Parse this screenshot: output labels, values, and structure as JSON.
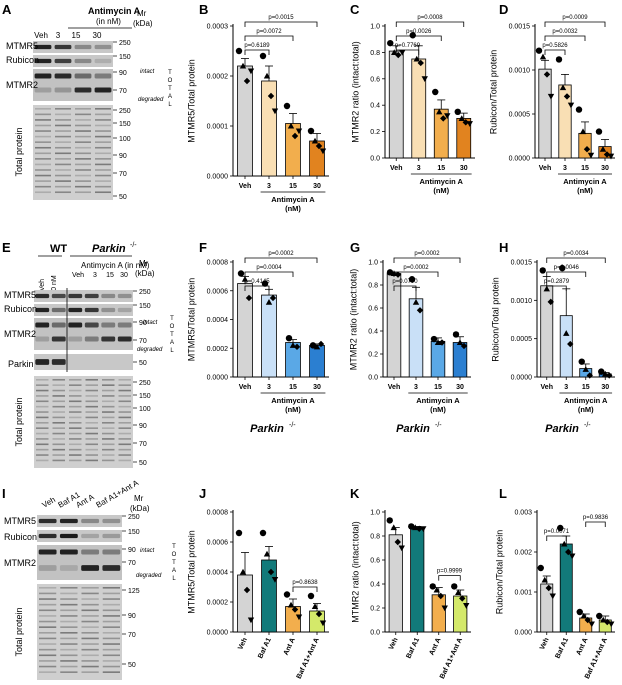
{
  "panel_letters": [
    "A",
    "B",
    "C",
    "D",
    "E",
    "F",
    "G",
    "H",
    "I",
    "J",
    "K",
    "L"
  ],
  "blots": {
    "A": {
      "header": [
        "Antimycin A",
        "(in nM)"
      ],
      "lanes": [
        "Veh",
        "3",
        "15",
        "30"
      ],
      "mr_title": [
        "Mr",
        "(kDa)"
      ],
      "rows": [
        "MTMR5",
        "Rubicon",
        "MTMR2"
      ],
      "total_label": "Total protein",
      "markers_top": [
        "250",
        "150",
        "90",
        "70"
      ],
      "markers_total": [
        "250",
        "150",
        "100",
        "90",
        "70",
        "50"
      ],
      "intact": "intact",
      "degraded": "degraded",
      "total_vertical": [
        "T",
        "O",
        "T",
        "A",
        "L"
      ]
    },
    "E": {
      "wt": "WT",
      "parkin": "Parkin",
      "parkin_sup": "-/-",
      "header": "Antimycin A (in nM)",
      "lanes": [
        "Veh",
        "30 nM",
        "Veh",
        "3",
        "15",
        "30"
      ],
      "mr_title": [
        "Mr",
        "(kDa)"
      ],
      "rows": [
        "MTMR5",
        "Rubicon",
        "MTMR2",
        "Parkin"
      ],
      "total_label": "Total protein",
      "markers_top": [
        "250",
        "150",
        "90",
        "70",
        "50"
      ],
      "markers_total": [
        "250",
        "150",
        "100",
        "90",
        "70",
        "50"
      ],
      "intact": "intact",
      "degraded": "degraded",
      "total_vertical": [
        "T",
        "O",
        "T",
        "A",
        "L"
      ]
    },
    "I": {
      "lanes": [
        "Veh",
        "Baf A1",
        "Ant A",
        "Baf A1+Ant A"
      ],
      "mr_title": [
        "Mr",
        "(kDa)"
      ],
      "rows": [
        "MTMR5",
        "Rubicon",
        "MTMR2"
      ],
      "total_label": "Total protein",
      "markers_top": [
        "250",
        "150",
        "90",
        "70"
      ],
      "markers_total": [
        "125",
        "90",
        "70",
        "50"
      ],
      "intact": "intact",
      "degraded": "degraded",
      "total_vertical": [
        "T",
        "O",
        "T",
        "A",
        "L"
      ]
    }
  },
  "chart_data": [
    {
      "panel": "B",
      "type": "bar",
      "categories": [
        "Veh",
        "3",
        "15",
        "30"
      ],
      "values": [
        0.00022,
        0.00019,
        0.000105,
        7e-05
      ],
      "errors": [
        1.5e-05,
        3e-05,
        2e-05,
        1.5e-05
      ],
      "points": [
        [
          0.00025,
          0.00022,
          0.00019,
          0.00021
        ],
        [
          0.00024,
          0.0002,
          0.00016,
          0.00013
        ],
        [
          0.00014,
          0.0001,
          8e-05,
          9e-05
        ],
        [
          9e-05,
          7e-05,
          6e-05,
          5e-05
        ]
      ],
      "colors": [
        "#d4d4d4",
        "#f9dfb4",
        "#f2ae4d",
        "#e1831f"
      ],
      "ylabel": "MTMR5/Total protein",
      "yticks": [
        "0.0000",
        "0.0001",
        "0.0002",
        "0.0003"
      ],
      "ylim": [
        0,
        0.0003
      ],
      "group_label": [
        "Antimycin A",
        "(nM)"
      ],
      "xticks_rotated": false,
      "brackets": [
        {
          "from": 0,
          "to": 1,
          "text": "p=0.6189"
        },
        {
          "from": 0,
          "to": 2,
          "text": "p=0.0072"
        },
        {
          "from": 0,
          "to": 3,
          "text": "p=0.0015"
        }
      ],
      "genotype": ""
    },
    {
      "panel": "C",
      "type": "bar",
      "categories": [
        "Veh",
        "3",
        "15",
        "30"
      ],
      "values": [
        0.81,
        0.75,
        0.37,
        0.3
      ],
      "errors": [
        0.04,
        0.1,
        0.07,
        0.04
      ],
      "points": [
        [
          0.87,
          0.8,
          0.78,
          0.8
        ],
        [
          0.93,
          0.75,
          0.72,
          0.6
        ],
        [
          0.5,
          0.35,
          0.3,
          0.32
        ],
        [
          0.35,
          0.3,
          0.27,
          0.26
        ]
      ],
      "colors": [
        "#d4d4d4",
        "#f9dfb4",
        "#f2ae4d",
        "#e1831f"
      ],
      "ylabel": "MTMR2 ratio (intact:total)",
      "yticks": [
        "0.0",
        "0.2",
        "0.4",
        "0.6",
        "0.8",
        "1.0"
      ],
      "ylim": [
        0,
        1.0
      ],
      "group_label": [
        "Antimycin A",
        "(nM)"
      ],
      "xticks_rotated": false,
      "brackets": [
        {
          "from": 0,
          "to": 1,
          "text": "p=0.7769"
        },
        {
          "from": 0,
          "to": 2,
          "text": "p=0.0026"
        },
        {
          "from": 0,
          "to": 3,
          "text": "p=0.0008"
        }
      ],
      "genotype": ""
    },
    {
      "panel": "D",
      "type": "bar",
      "categories": [
        "Veh",
        "3",
        "15",
        "30"
      ],
      "values": [
        0.00101,
        0.00083,
        0.00028,
        0.00013
      ],
      "errors": [
        0.0001,
        0.00012,
        0.00013,
        8e-05
      ],
      "points": [
        [
          0.00122,
          0.00115,
          0.00095,
          0.0007
        ],
        [
          0.00112,
          0.0008,
          0.0007,
          0.0006
        ],
        [
          0.00055,
          0.0003,
          0.0001,
          3e-05
        ],
        [
          0.0003,
          0.0001,
          4e-05,
          2e-05
        ]
      ],
      "colors": [
        "#d4d4d4",
        "#f9dfb4",
        "#f2ae4d",
        "#e1831f"
      ],
      "ylabel": "Rubicon/Total protein",
      "yticks": [
        "0.0000",
        "0.0005",
        "0.0010",
        "0.0015"
      ],
      "ylim": [
        0,
        0.0015
      ],
      "group_label": [
        "Antimycin A",
        "(nM)"
      ],
      "xticks_rotated": false,
      "brackets": [
        {
          "from": 0,
          "to": 1,
          "text": "p=0.5826"
        },
        {
          "from": 0,
          "to": 2,
          "text": "p=0.0032"
        },
        {
          "from": 0,
          "to": 3,
          "text": "p=0.0009"
        }
      ],
      "genotype": ""
    },
    {
      "panel": "F",
      "type": "bar",
      "categories": [
        "Veh",
        "3",
        "15",
        "30"
      ],
      "values": [
        0.00065,
        0.00057,
        0.00024,
        0.00022
      ],
      "errors": [
        5e-05,
        4e-05,
        2e-05,
        1e-05
      ],
      "points": [
        [
          0.00072,
          0.00068,
          0.00055
        ],
        [
          0.00065,
          0.00052,
          0.00055
        ],
        [
          0.00027,
          0.00022,
          0.00021
        ],
        [
          0.00022,
          0.00021,
          0.00023
        ]
      ],
      "colors": [
        "#d4d4d4",
        "#c9e0f7",
        "#5aa8e6",
        "#2b7fd1"
      ],
      "ylabel": "MTMR5/Total protein",
      "yticks": [
        "0.0000",
        "0.0002",
        "0.0004",
        "0.0006",
        "0.0008"
      ],
      "ylim": [
        0,
        0.0008
      ],
      "group_label": [
        "Antimycin A",
        "(nM)"
      ],
      "xticks_rotated": false,
      "brackets": [
        {
          "from": 0,
          "to": 1,
          "text": "p=0.4145"
        },
        {
          "from": 0,
          "to": 2,
          "text": "p=0.0004"
        },
        {
          "from": 0,
          "to": 3,
          "text": "p=0.0002"
        }
      ],
      "genotype": "Parkin"
    },
    {
      "panel": "G",
      "type": "bar",
      "categories": [
        "Veh",
        "3",
        "15",
        "30"
      ],
      "values": [
        0.9,
        0.68,
        0.31,
        0.3
      ],
      "errors": [
        0.01,
        0.1,
        0.03,
        0.05
      ],
      "points": [
        [
          0.91,
          0.9,
          0.89
        ],
        [
          0.85,
          0.65,
          0.58
        ],
        [
          0.33,
          0.3,
          0.3
        ],
        [
          0.37,
          0.3,
          0.27
        ]
      ],
      "colors": [
        "#d4d4d4",
        "#c9e0f7",
        "#5aa8e6",
        "#2b7fd1"
      ],
      "ylabel": "MTMR2 ratio (intact:total)",
      "yticks": [
        "0.0",
        "0.2",
        "0.4",
        "0.6",
        "0.8",
        "1.0"
      ],
      "ylim": [
        0,
        1.0
      ],
      "group_label": [
        "Antimycin A",
        "(nM)"
      ],
      "xticks_rotated": false,
      "brackets": [
        {
          "from": 0,
          "to": 1,
          "text": "p=0.0790"
        },
        {
          "from": 0,
          "to": 2,
          "text": "p=0.0002"
        },
        {
          "from": 0,
          "to": 3,
          "text": "p=0.0002"
        }
      ],
      "genotype": "Parkin"
    },
    {
      "panel": "H",
      "type": "bar",
      "categories": [
        "Veh",
        "3",
        "15",
        "30"
      ],
      "values": [
        0.00119,
        0.0008,
        0.00011,
        4e-05
      ],
      "errors": [
        0.00012,
        0.00035,
        6e-05,
        2e-05
      ],
      "points": [
        [
          0.00139,
          0.00115,
          0.00098
        ],
        [
          0.00142,
          0.00057,
          0.00043
        ],
        [
          0.0002,
          0.0001,
          2e-05
        ],
        [
          7e-05,
          4e-05,
          2e-05
        ]
      ],
      "colors": [
        "#d4d4d4",
        "#c9e0f7",
        "#5aa8e6",
        "#2b7fd1"
      ],
      "ylabel": "Rubicon/Total protein",
      "yticks": [
        "0.0000",
        "0.0005",
        "0.0010",
        "0.0015"
      ],
      "ylim": [
        0,
        0.0015
      ],
      "group_label": [
        "Antimycin A",
        "(nM)"
      ],
      "xticks_rotated": false,
      "brackets": [
        {
          "from": 0,
          "to": 1,
          "text": "p=0.2879"
        },
        {
          "from": 0,
          "to": 2,
          "text": "p=0.0046"
        },
        {
          "from": 0,
          "to": 3,
          "text": "p=0.0034"
        }
      ],
      "genotype": "Parkin"
    },
    {
      "panel": "J",
      "type": "bar",
      "categories": [
        "Veh",
        "Baf A1",
        "Ant A",
        "Baf A1+Ant A"
      ],
      "values": [
        0.00038,
        0.00048,
        0.00017,
        0.00014
      ],
      "errors": [
        0.00015,
        9e-05,
        5e-05,
        5e-05
      ],
      "points": [
        [
          0.00066,
          0.0004,
          0.00028,
          8e-05
        ],
        [
          0.00066,
          0.00052,
          0.0004,
          0.00035
        ],
        [
          0.00025,
          0.00018,
          0.00015,
          0.0001
        ],
        [
          0.00024,
          0.00017,
          0.00012,
          6e-05
        ]
      ],
      "colors": [
        "#d4d4d4",
        "#127a7a",
        "#f2ae4d",
        "#d4e96a"
      ],
      "ylabel": "MTMR5/Total protein",
      "yticks": [
        "0.0000",
        "0.0002",
        "0.0004",
        "0.0006",
        "0.0008"
      ],
      "ylim": [
        0,
        0.0008
      ],
      "group_label": [],
      "xticks_rotated": true,
      "brackets": [
        {
          "from": 2,
          "to": 3,
          "text": "p=0.8638"
        }
      ],
      "genotype": ""
    },
    {
      "panel": "K",
      "type": "bar",
      "categories": [
        "Veh",
        "Baf A1",
        "Ant A",
        "Baf A1+Ant A"
      ],
      "values": [
        0.81,
        0.87,
        0.31,
        0.3
      ],
      "errors": [
        0.06,
        0.01,
        0.06,
        0.05
      ],
      "points": [
        [
          0.93,
          0.87,
          0.75,
          0.7
        ],
        [
          0.88,
          0.87,
          0.86,
          0.86
        ],
        [
          0.38,
          0.35,
          0.3,
          0.2
        ],
        [
          0.38,
          0.33,
          0.28,
          0.22
        ]
      ],
      "colors": [
        "#d4d4d4",
        "#127a7a",
        "#f2ae4d",
        "#d4e96a"
      ],
      "ylabel": "MTMR2 ratio (intact:total)",
      "yticks": [
        "0.0",
        "0.2",
        "0.4",
        "0.6",
        "0.8",
        "1.0"
      ],
      "ylim": [
        0,
        1.0
      ],
      "group_label": [],
      "xticks_rotated": true,
      "brackets": [
        {
          "from": 2,
          "to": 3,
          "text": "p=0.9999"
        }
      ],
      "genotype": ""
    },
    {
      "panel": "L",
      "type": "bar",
      "categories": [
        "Veh",
        "Baf A1",
        "Ant A",
        "Baf A1+Ant A"
      ],
      "values": [
        0.0012,
        0.0022,
        0.00035,
        0.0003
      ],
      "errors": [
        0.0002,
        0.0002,
        0.0001,
        0.0001
      ],
      "points": [
        [
          0.0016,
          0.0013,
          0.0011,
          0.0009
        ],
        [
          0.0026,
          0.0022,
          0.002,
          0.0019
        ],
        [
          0.0005,
          0.0004,
          0.0003,
          0.0002
        ],
        [
          0.0004,
          0.0003,
          0.00025,
          0.0002
        ]
      ],
      "colors": [
        "#d4d4d4",
        "#127a7a",
        "#f2ae4d",
        "#d4e96a"
      ],
      "ylabel": "Rubicon/Total protein",
      "yticks": [
        "0.000",
        "0.001",
        "0.002",
        "0.003"
      ],
      "ylim": [
        0,
        0.003
      ],
      "group_label": [],
      "xticks_rotated": true,
      "brackets": [
        {
          "from": 0,
          "to": 1,
          "text": "p=0.0071"
        },
        {
          "from": 2,
          "to": 3,
          "text": "p=0.9836"
        }
      ],
      "genotype": ""
    }
  ]
}
